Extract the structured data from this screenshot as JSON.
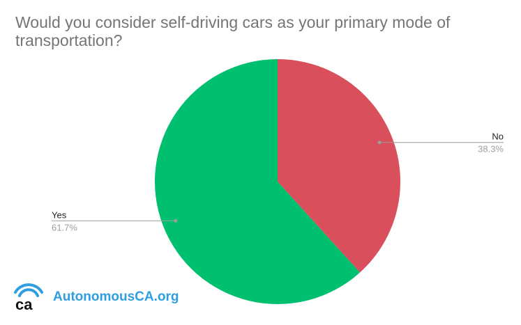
{
  "chart_data": {
    "type": "pie",
    "title": "Would you consider self-driving cars as your primary mode of transportation?",
    "slices": [
      {
        "label": "No",
        "value": 38.3,
        "value_label": "38.3%",
        "color": "#d94f5c"
      },
      {
        "label": "Yes",
        "value": 61.7,
        "value_label": "61.7%",
        "color": "#00bf6f"
      }
    ],
    "legend": "none",
    "start_angle_deg": 0,
    "direction": "clockwise"
  },
  "logo": {
    "text": "AutonomousCA.org",
    "mark_text": "ca",
    "color": "#2f9ee0",
    "icon": "wifi-signal-icon"
  }
}
